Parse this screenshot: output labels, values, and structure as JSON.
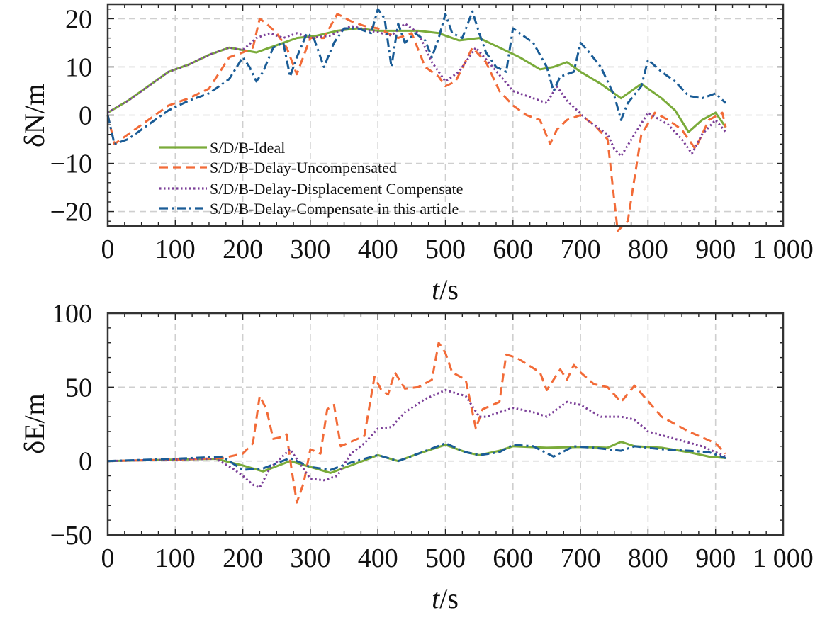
{
  "chart_data": [
    {
      "type": "line",
      "ylabel": "δN/m",
      "xlabel_italic": "t",
      "xlabel_unit": "/s",
      "xlim": [
        0,
        1000
      ],
      "ylim": [
        -23,
        23
      ],
      "xticks": [
        0,
        100,
        200,
        300,
        400,
        500,
        600,
        700,
        800,
        900,
        1000
      ],
      "xtick_labels": [
        "0",
        "100",
        "200",
        "300",
        "400",
        "500",
        "600",
        "700",
        "800",
        "900",
        "1 000"
      ],
      "yticks": [
        -20,
        -10,
        0,
        10,
        20
      ],
      "ytick_labels": [
        "−20",
        "−10",
        "0",
        "10",
        "20"
      ],
      "grid": true,
      "legend_position": "bottom-left",
      "series": [
        {
          "name": "S/D/B-Ideal",
          "color": "#7aab3a",
          "style": "solid",
          "x": [
            0,
            30,
            60,
            90,
            120,
            150,
            180,
            200,
            220,
            250,
            280,
            310,
            340,
            370,
            400,
            430,
            460,
            490,
            520,
            550,
            580,
            610,
            640,
            660,
            680,
            700,
            730,
            760,
            790,
            820,
            840,
            860,
            880,
            900,
            915
          ],
          "y": [
            0.5,
            3,
            6,
            9,
            10.5,
            12.5,
            14,
            13.5,
            13,
            14.5,
            16,
            16.5,
            17.5,
            18,
            17.5,
            17.5,
            17.5,
            17,
            15.5,
            16,
            14,
            12,
            9.5,
            10,
            11,
            9,
            6.5,
            3.5,
            6.5,
            3.5,
            1,
            -3.5,
            -1,
            0.5,
            -2.5
          ]
        },
        {
          "name": "S/D/B-Delay-Uncompensated",
          "color": "#f26b38",
          "style": "dashed",
          "x": [
            0,
            10,
            30,
            60,
            90,
            120,
            150,
            180,
            200,
            215,
            225,
            235,
            250,
            265,
            280,
            300,
            320,
            340,
            360,
            380,
            400,
            415,
            430,
            450,
            470,
            490,
            500,
            515,
            540,
            560,
            580,
            600,
            620,
            640,
            655,
            665,
            680,
            700,
            720,
            740,
            755,
            770,
            790,
            810,
            830,
            850,
            870,
            890,
            910,
            915
          ],
          "y": [
            0,
            -6,
            -4,
            -1,
            2,
            3.5,
            5.5,
            12,
            13,
            14,
            20,
            19,
            17,
            14,
            8.5,
            16,
            16,
            21,
            19.5,
            18.5,
            18,
            17,
            16,
            17,
            10,
            8,
            6,
            7,
            14,
            11,
            5,
            2,
            0,
            -1,
            -6,
            -3,
            -1,
            0,
            -2,
            -5,
            -24,
            -22,
            -4,
            0.5,
            -1,
            -3,
            -7,
            -1,
            0.5,
            -2.5
          ]
        },
        {
          "name": "S/D/B-Delay-Displacement Compensate",
          "color": "#7b3f98",
          "style": "dotted",
          "x": [
            0,
            30,
            60,
            90,
            120,
            150,
            180,
            200,
            220,
            240,
            260,
            280,
            300,
            330,
            360,
            390,
            420,
            440,
            460,
            480,
            500,
            520,
            545,
            570,
            600,
            630,
            650,
            665,
            680,
            710,
            740,
            750,
            760,
            780,
            800,
            830,
            850,
            865,
            880,
            900,
            915
          ],
          "y": [
            0.5,
            3,
            6,
            9,
            10.5,
            12.5,
            14,
            13.5,
            16,
            17,
            16,
            17,
            16,
            16.5,
            18.5,
            17.5,
            16.5,
            19,
            17,
            11,
            7,
            9,
            14,
            10,
            5,
            3.5,
            2.5,
            6,
            3,
            -1,
            -4,
            -7,
            -8.5,
            -4,
            0.5,
            -2,
            -5,
            -8,
            -4,
            -1,
            -3.5
          ]
        },
        {
          "name": "S/D/B-Delay-Compensate in this article",
          "color": "#1a5c96",
          "style": "dashdot",
          "x": [
            0,
            10,
            30,
            60,
            90,
            120,
            150,
            180,
            200,
            210,
            220,
            230,
            245,
            260,
            270,
            280,
            295,
            305,
            320,
            335,
            350,
            370,
            390,
            400,
            410,
            420,
            430,
            440,
            455,
            470,
            480,
            490,
            500,
            510,
            525,
            540,
            550,
            560,
            575,
            590,
            600,
            610,
            630,
            650,
            660,
            670,
            690,
            700,
            710,
            730,
            750,
            760,
            770,
            790,
            800,
            820,
            840,
            860,
            880,
            900,
            915
          ],
          "y": [
            0,
            -6,
            -5,
            -2,
            1,
            3,
            4.5,
            7.5,
            12,
            10,
            7,
            9,
            14,
            15,
            8,
            12,
            17,
            16,
            10,
            15,
            18,
            18,
            17,
            22,
            20,
            10,
            19,
            15,
            17,
            15.5,
            12,
            16,
            21,
            17,
            16,
            21.5,
            17,
            13,
            10,
            9,
            18,
            17,
            15,
            10,
            5,
            8,
            9,
            15,
            13.5,
            10,
            4,
            -1,
            2.5,
            6,
            11.5,
            9,
            7,
            4,
            3.5,
            4.5,
            2.5
          ]
        }
      ]
    },
    {
      "type": "line",
      "ylabel": "δE/m",
      "xlabel_italic": "t",
      "xlabel_unit": "/s",
      "xlim": [
        0,
        1000
      ],
      "ylim": [
        -50,
        100
      ],
      "xticks": [
        0,
        100,
        200,
        300,
        400,
        500,
        600,
        700,
        800,
        900,
        1000
      ],
      "xtick_labels": [
        "0",
        "100",
        "200",
        "300",
        "400",
        "500",
        "600",
        "700",
        "800",
        "900",
        "1 000"
      ],
      "yticks": [
        -50,
        0,
        50,
        100
      ],
      "ytick_labels": [
        "−50",
        "0",
        "50",
        "100"
      ],
      "grid": true,
      "series": [
        {
          "name": "S/D/B-Ideal",
          "color": "#7aab3a",
          "style": "solid",
          "x": [
            0,
            100,
            160,
            200,
            230,
            270,
            300,
            330,
            360,
            400,
            430,
            460,
            500,
            530,
            550,
            580,
            600,
            650,
            700,
            740,
            760,
            780,
            820,
            860,
            890,
            915
          ],
          "y": [
            0,
            1,
            1.5,
            -3,
            -7,
            0,
            -4,
            -8,
            -3,
            4,
            0,
            5,
            11,
            6,
            4,
            7,
            10,
            9,
            9.5,
            9,
            13,
            10,
            9,
            6,
            3,
            2
          ]
        },
        {
          "name": "S/D/B-Delay-Uncompensated",
          "color": "#f26b38",
          "style": "dashed",
          "x": [
            0,
            100,
            170,
            200,
            215,
            225,
            235,
            245,
            255,
            265,
            272,
            280,
            290,
            300,
            315,
            325,
            335,
            345,
            380,
            395,
            405,
            415,
            425,
            440,
            460,
            480,
            490,
            500,
            510,
            530,
            545,
            555,
            580,
            590,
            605,
            640,
            650,
            660,
            670,
            680,
            690,
            700,
            720,
            740,
            760,
            780,
            820,
            860,
            900,
            915
          ],
          "y": [
            0,
            1,
            2,
            5,
            12,
            44,
            35,
            15,
            16,
            18,
            -5,
            -28,
            -15,
            8,
            5,
            35,
            38,
            10,
            17,
            57,
            48,
            45,
            60,
            49,
            50,
            55,
            80,
            73,
            60,
            55,
            22,
            35,
            40,
            72,
            70,
            60,
            48,
            55,
            62,
            55,
            65,
            60,
            52,
            50,
            40,
            51,
            30,
            20,
            12,
            5
          ]
        },
        {
          "name": "S/D/B-Delay-Displacement Compensate",
          "color": "#7b3f98",
          "style": "dotted",
          "x": [
            0,
            100,
            160,
            185,
            200,
            215,
            225,
            240,
            270,
            285,
            300,
            320,
            340,
            360,
            380,
            400,
            420,
            440,
            470,
            500,
            530,
            550,
            560,
            600,
            630,
            650,
            680,
            700,
            730,
            760,
            780,
            800,
            840,
            880,
            915
          ],
          "y": [
            0,
            1,
            1.5,
            -5,
            -10,
            -16,
            -18,
            -5,
            8,
            -2,
            -12,
            -13,
            -10,
            5,
            12,
            22,
            23,
            33,
            42,
            48,
            44,
            30,
            30,
            36,
            33,
            30,
            40,
            38,
            30,
            30,
            28,
            20,
            15,
            10,
            3
          ]
        },
        {
          "name": "S/D/B-Delay-Compensate in this article",
          "color": "#1a5c96",
          "style": "dashdot",
          "x": [
            0,
            100,
            170,
            200,
            230,
            270,
            300,
            330,
            360,
            400,
            430,
            460,
            500,
            530,
            550,
            580,
            600,
            630,
            660,
            690,
            720,
            740,
            760,
            780,
            820,
            860,
            890,
            915
          ],
          "y": [
            0,
            1.5,
            3,
            -6,
            -5,
            2,
            -4,
            -6,
            -1,
            4,
            0,
            5,
            12,
            6,
            4,
            6,
            11,
            10,
            3,
            10,
            9,
            8,
            7,
            10,
            8,
            7,
            6,
            2
          ]
        }
      ]
    }
  ]
}
